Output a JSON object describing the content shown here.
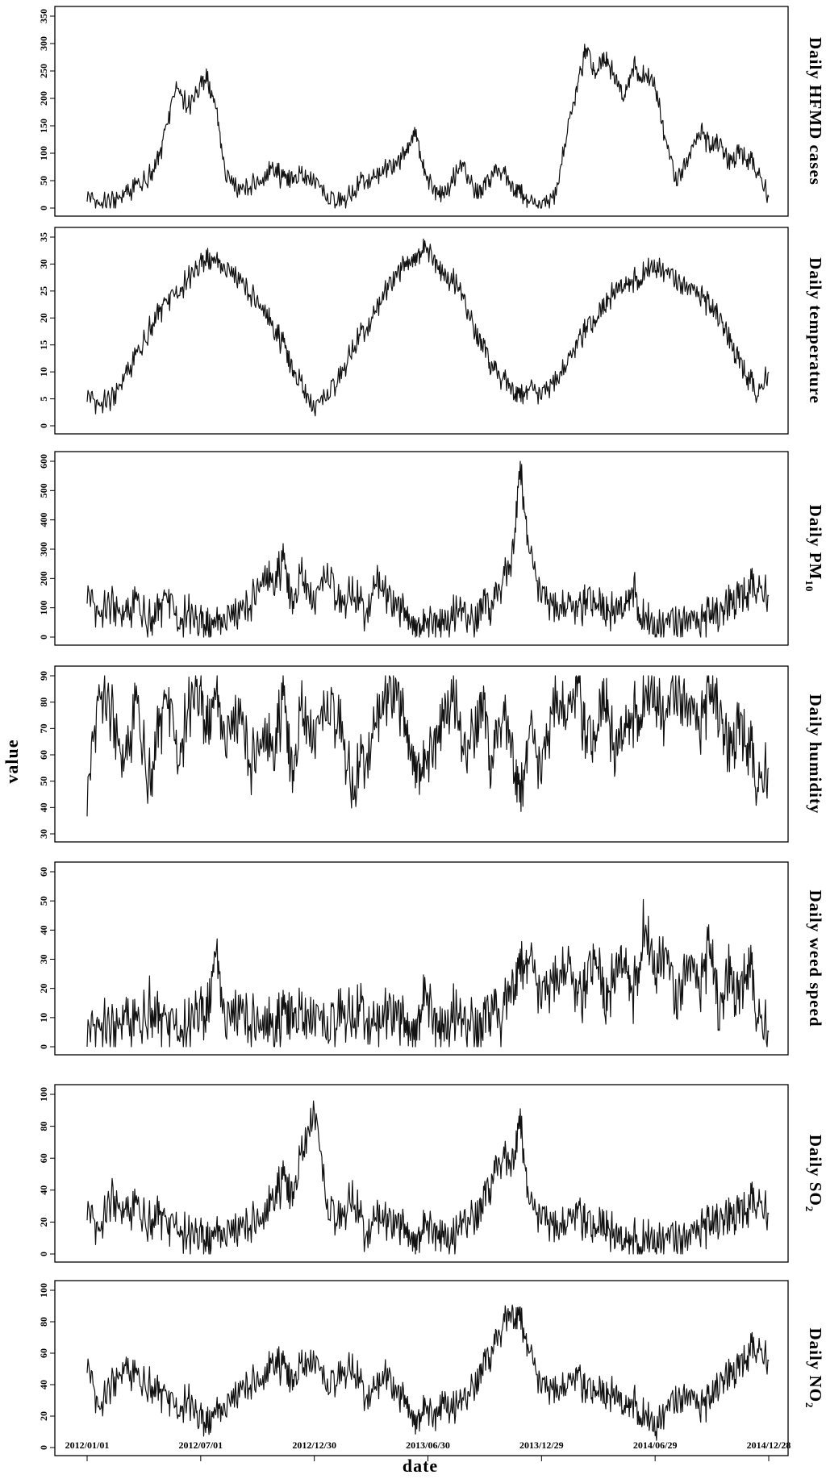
{
  "figure": {
    "y_axis_title": "value",
    "x_axis_title": "date",
    "x_ticks": [
      "2012/01/01",
      "2012/07/01",
      "2012/12/30",
      "2013/06/30",
      "2013/12/29",
      "2014/06/29",
      "2014/12/28"
    ],
    "line_color": "#111111"
  },
  "chart_data": [
    {
      "type": "line",
      "panel_label": "Daily HFMD cases",
      "ylim": [
        0,
        350
      ],
      "yticks": [
        0,
        50,
        100,
        150,
        200,
        250,
        300,
        350
      ],
      "x": [
        "2012/01/01",
        "2012/01/20",
        "2012/02/10",
        "2012/03/01",
        "2012/03/20",
        "2012/04/10",
        "2012/04/25",
        "2012/05/10",
        "2012/05/25",
        "2012/06/10",
        "2012/06/25",
        "2012/07/10",
        "2012/07/25",
        "2012/08/10",
        "2012/09/01",
        "2012/09/20",
        "2012/10/10",
        "2012/10/25",
        "2012/11/10",
        "2012/11/25",
        "2012/12/10",
        "2012/12/30",
        "2013/01/20",
        "2013/02/10",
        "2013/03/01",
        "2013/03/20",
        "2013/04/10",
        "2013/04/25",
        "2013/05/10",
        "2013/05/25",
        "2013/06/10",
        "2013/06/25",
        "2013/07/10",
        "2013/07/25",
        "2013/08/10",
        "2013/08/25",
        "2013/09/10",
        "2013/09/25",
        "2013/10/10",
        "2013/10/25",
        "2013/11/10",
        "2013/11/25",
        "2013/12/10",
        "2013/12/29",
        "2014/01/20",
        "2014/02/10",
        "2014/02/25",
        "2014/03/10",
        "2014/03/25",
        "2014/04/10",
        "2014/04/25",
        "2014/05/10",
        "2014/05/25",
        "2014/06/10",
        "2014/06/29",
        "2014/07/15",
        "2014/08/01",
        "2014/08/20",
        "2014/09/10",
        "2014/09/25",
        "2014/10/10",
        "2014/10/25",
        "2014/11/10",
        "2014/11/25",
        "2014/12/10",
        "2014/12/28"
      ],
      "values": [
        25,
        8,
        12,
        25,
        40,
        60,
        90,
        160,
        230,
        180,
        210,
        240,
        180,
        60,
        30,
        40,
        55,
        75,
        50,
        60,
        55,
        50,
        20,
        10,
        25,
        55,
        60,
        70,
        80,
        100,
        150,
        60,
        35,
        25,
        55,
        80,
        40,
        30,
        60,
        70,
        40,
        25,
        10,
        5,
        20,
        150,
        220,
        290,
        250,
        270,
        240,
        200,
        260,
        240,
        230,
        130,
        50,
        90,
        140,
        110,
        120,
        80,
        100,
        90,
        70,
        20
      ]
    },
    {
      "type": "line",
      "panel_label": "Daily temperature",
      "ylim": [
        0,
        35
      ],
      "yticks": [
        0,
        5,
        10,
        15,
        20,
        25,
        30,
        35
      ],
      "x": [
        "2012/01/01",
        "2012/01/20",
        "2012/02/10",
        "2012/03/01",
        "2012/03/20",
        "2012/04/10",
        "2012/04/25",
        "2012/05/10",
        "2012/05/25",
        "2012/06/10",
        "2012/06/25",
        "2012/07/10",
        "2012/07/25",
        "2012/08/10",
        "2012/09/01",
        "2012/09/20",
        "2012/10/10",
        "2012/10/25",
        "2012/11/10",
        "2012/11/25",
        "2012/12/10",
        "2012/12/30",
        "2013/01/20",
        "2013/02/10",
        "2013/03/01",
        "2013/03/20",
        "2013/04/10",
        "2013/04/25",
        "2013/05/10",
        "2013/05/25",
        "2013/06/10",
        "2013/06/25",
        "2013/07/10",
        "2013/07/25",
        "2013/08/10",
        "2013/08/25",
        "2013/09/10",
        "2013/09/25",
        "2013/10/10",
        "2013/10/25",
        "2013/11/10",
        "2013/11/25",
        "2013/12/10",
        "2013/12/29",
        "2014/01/20",
        "2014/02/10",
        "2014/02/25",
        "2014/03/10",
        "2014/03/25",
        "2014/04/10",
        "2014/04/25",
        "2014/05/10",
        "2014/05/25",
        "2014/06/10",
        "2014/06/29",
        "2014/07/15",
        "2014/08/01",
        "2014/08/20",
        "2014/09/10",
        "2014/09/25",
        "2014/10/10",
        "2014/10/25",
        "2014/11/10",
        "2014/11/25",
        "2014/12/10",
        "2014/12/28"
      ],
      "values": [
        6,
        4,
        5,
        9,
        13,
        18,
        21,
        23,
        25,
        27,
        29,
        31,
        30,
        29,
        27,
        24,
        22,
        18,
        15,
        11,
        7,
        3,
        6,
        9,
        14,
        18,
        22,
        25,
        28,
        30,
        32,
        33,
        31,
        28,
        27,
        24,
        19,
        15,
        11,
        9,
        7,
        5,
        7,
        6,
        8,
        12,
        15,
        18,
        20,
        22,
        25,
        26,
        27,
        28,
        30,
        29,
        27,
        26,
        24,
        22,
        20,
        16,
        12,
        9,
        6,
        10
      ]
    },
    {
      "type": "line",
      "panel_label": "Daily PM10",
      "ylim": [
        0,
        600
      ],
      "yticks": [
        0,
        100,
        200,
        300,
        400,
        500,
        600
      ],
      "x": [
        "2012/01/01",
        "2012/01/20",
        "2012/02/10",
        "2012/03/01",
        "2012/03/20",
        "2012/04/10",
        "2012/04/25",
        "2012/05/10",
        "2012/05/25",
        "2012/06/10",
        "2012/06/25",
        "2012/07/10",
        "2012/07/25",
        "2012/08/10",
        "2012/09/01",
        "2012/09/20",
        "2012/10/10",
        "2012/10/25",
        "2012/11/10",
        "2012/11/25",
        "2012/12/10",
        "2012/12/30",
        "2013/01/20",
        "2013/02/10",
        "2013/03/01",
        "2013/03/20",
        "2013/04/10",
        "2013/04/25",
        "2013/05/10",
        "2013/05/25",
        "2013/06/10",
        "2013/06/25",
        "2013/07/10",
        "2013/07/25",
        "2013/08/10",
        "2013/08/25",
        "2013/09/10",
        "2013/09/25",
        "2013/10/10",
        "2013/10/25",
        "2013/11/10",
        "2013/11/25",
        "2013/12/10",
        "2013/12/29",
        "2014/01/20",
        "2014/02/10",
        "2014/02/25",
        "2014/03/10",
        "2014/03/25",
        "2014/04/10",
        "2014/04/25",
        "2014/05/10",
        "2014/05/25",
        "2014/06/10",
        "2014/06/29",
        "2014/07/15",
        "2014/08/01",
        "2014/08/20",
        "2014/09/10",
        "2014/09/25",
        "2014/10/10",
        "2014/10/25",
        "2014/11/10",
        "2014/11/25",
        "2014/12/10",
        "2014/12/28"
      ],
      "values": [
        160,
        80,
        110,
        70,
        120,
        60,
        90,
        130,
        60,
        80,
        50,
        40,
        30,
        60,
        80,
        110,
        220,
        180,
        250,
        130,
        200,
        110,
        230,
        100,
        150,
        90,
        200,
        130,
        110,
        80,
        60,
        40,
        60,
        50,
        80,
        90,
        60,
        110,
        100,
        180,
        240,
        560,
        280,
        150,
        90,
        110,
        80,
        120,
        140,
        70,
        90,
        100,
        170,
        60,
        40,
        60,
        50,
        70,
        40,
        80,
        70,
        110,
        130,
        160,
        180,
        140
      ]
    },
    {
      "type": "line",
      "panel_label": "Daily humidity",
      "ylim": [
        30,
        90
      ],
      "yticks": [
        30,
        40,
        50,
        60,
        70,
        80,
        90
      ],
      "x": [
        "2012/01/01",
        "2012/01/20",
        "2012/02/10",
        "2012/03/01",
        "2012/03/20",
        "2012/04/10",
        "2012/04/25",
        "2012/05/10",
        "2012/05/25",
        "2012/06/10",
        "2012/06/25",
        "2012/07/10",
        "2012/07/25",
        "2012/08/10",
        "2012/09/01",
        "2012/09/20",
        "2012/10/10",
        "2012/10/25",
        "2012/11/10",
        "2012/11/25",
        "2012/12/10",
        "2012/12/30",
        "2013/01/20",
        "2013/02/10",
        "2013/03/01",
        "2013/03/20",
        "2013/04/10",
        "2013/04/25",
        "2013/05/10",
        "2013/05/25",
        "2013/06/10",
        "2013/06/25",
        "2013/07/10",
        "2013/07/25",
        "2013/08/10",
        "2013/08/25",
        "2013/09/10",
        "2013/09/25",
        "2013/10/10",
        "2013/10/25",
        "2013/11/10",
        "2013/11/25",
        "2013/12/10",
        "2013/12/29",
        "2014/01/20",
        "2014/02/10",
        "2014/02/25",
        "2014/03/10",
        "2014/03/25",
        "2014/04/10",
        "2014/04/25",
        "2014/05/10",
        "2014/05/25",
        "2014/06/10",
        "2014/06/29",
        "2014/07/15",
        "2014/08/01",
        "2014/08/20",
        "2014/09/10",
        "2014/09/25",
        "2014/10/10",
        "2014/10/25",
        "2014/11/10",
        "2014/11/25",
        "2014/12/10",
        "2014/12/28"
      ],
      "values": [
        45,
        85,
        75,
        55,
        80,
        50,
        70,
        80,
        60,
        75,
        85,
        70,
        80,
        65,
        75,
        55,
        70,
        60,
        80,
        55,
        75,
        65,
        80,
        70,
        45,
        60,
        75,
        80,
        85,
        70,
        60,
        55,
        65,
        75,
        85,
        60,
        70,
        80,
        55,
        75,
        65,
        40,
        70,
        55,
        80,
        75,
        85,
        65,
        70,
        80,
        60,
        70,
        75,
        80,
        85,
        75,
        85,
        80,
        70,
        85,
        75,
        60,
        70,
        65,
        50,
        55
      ]
    },
    {
      "type": "line",
      "panel_label": "Daily weed speed",
      "ylim": [
        0,
        60
      ],
      "yticks": [
        0,
        10,
        20,
        30,
        40,
        50,
        60
      ],
      "x": [
        "2012/01/01",
        "2012/01/20",
        "2012/02/10",
        "2012/03/01",
        "2012/03/20",
        "2012/04/10",
        "2012/04/25",
        "2012/05/10",
        "2012/05/25",
        "2012/06/10",
        "2012/06/25",
        "2012/07/10",
        "2012/07/25",
        "2012/08/10",
        "2012/09/01",
        "2012/09/20",
        "2012/10/10",
        "2012/10/25",
        "2012/11/10",
        "2012/11/25",
        "2012/12/10",
        "2012/12/30",
        "2013/01/20",
        "2013/02/10",
        "2013/03/01",
        "2013/03/20",
        "2013/04/10",
        "2013/04/25",
        "2013/05/10",
        "2013/05/25",
        "2013/06/10",
        "2013/06/25",
        "2013/07/10",
        "2013/07/25",
        "2013/08/10",
        "2013/08/25",
        "2013/09/10",
        "2013/09/25",
        "2013/10/10",
        "2013/10/25",
        "2013/11/10",
        "2013/11/25",
        "2013/12/10",
        "2013/12/29",
        "2014/01/20",
        "2014/02/10",
        "2014/02/25",
        "2014/03/10",
        "2014/03/25",
        "2014/04/10",
        "2014/04/25",
        "2014/05/10",
        "2014/05/25",
        "2014/06/10",
        "2014/06/29",
        "2014/07/15",
        "2014/08/01",
        "2014/08/20",
        "2014/09/10",
        "2014/09/25",
        "2014/10/10",
        "2014/10/25",
        "2014/11/10",
        "2014/11/25",
        "2014/12/10",
        "2014/12/28"
      ],
      "values": [
        6,
        8,
        5,
        10,
        7,
        14,
        9,
        6,
        8,
        5,
        12,
        10,
        30,
        8,
        12,
        7,
        10,
        6,
        9,
        14,
        8,
        10,
        7,
        11,
        9,
        13,
        8,
        10,
        12,
        7,
        9,
        18,
        10,
        6,
        12,
        8,
        10,
        6,
        14,
        9,
        20,
        25,
        30,
        18,
        22,
        28,
        15,
        20,
        35,
        12,
        25,
        30,
        18,
        40,
        28,
        35,
        15,
        30,
        20,
        35,
        10,
        25,
        15,
        30,
        12,
        5
      ]
    },
    {
      "type": "line",
      "panel_label": "Daily SO2",
      "ylim": [
        0,
        100
      ],
      "yticks": [
        0,
        20,
        40,
        60,
        80,
        100
      ],
      "x": [
        "2012/01/01",
        "2012/01/20",
        "2012/02/10",
        "2012/03/01",
        "2012/03/20",
        "2012/04/10",
        "2012/04/25",
        "2012/05/10",
        "2012/05/25",
        "2012/06/10",
        "2012/06/25",
        "2012/07/10",
        "2012/07/25",
        "2012/08/10",
        "2012/09/01",
        "2012/09/20",
        "2012/10/10",
        "2012/10/25",
        "2012/11/10",
        "2012/11/25",
        "2012/12/10",
        "2012/12/30",
        "2013/01/20",
        "2013/02/10",
        "2013/03/01",
        "2013/03/20",
        "2013/04/10",
        "2013/04/25",
        "2013/05/10",
        "2013/05/25",
        "2013/06/10",
        "2013/06/25",
        "2013/07/10",
        "2013/07/25",
        "2013/08/10",
        "2013/08/25",
        "2013/09/10",
        "2013/09/25",
        "2013/10/10",
        "2013/10/25",
        "2013/11/10",
        "2013/11/25",
        "2013/12/10",
        "2013/12/29",
        "2014/01/20",
        "2014/02/10",
        "2014/02/25",
        "2014/03/10",
        "2014/03/25",
        "2014/04/10",
        "2014/04/25",
        "2014/05/10",
        "2014/05/25",
        "2014/06/10",
        "2014/06/29",
        "2014/07/15",
        "2014/08/01",
        "2014/08/20",
        "2014/09/10",
        "2014/09/25",
        "2014/10/10",
        "2014/10/25",
        "2014/11/10",
        "2014/11/25",
        "2014/12/10",
        "2014/12/28"
      ],
      "values": [
        30,
        15,
        35,
        25,
        30,
        20,
        25,
        15,
        20,
        10,
        12,
        8,
        10,
        12,
        15,
        18,
        25,
        35,
        45,
        40,
        60,
        90,
        30,
        20,
        35,
        15,
        25,
        18,
        20,
        15,
        12,
        18,
        15,
        12,
        10,
        20,
        25,
        30,
        45,
        60,
        55,
        80,
        30,
        25,
        15,
        20,
        25,
        18,
        20,
        15,
        12,
        8,
        10,
        8,
        10,
        12,
        10,
        12,
        15,
        18,
        20,
        22,
        25,
        30,
        35,
        25
      ]
    },
    {
      "type": "line",
      "panel_label": "Daily NO2",
      "ylim": [
        0,
        100
      ],
      "yticks": [
        0,
        20,
        40,
        60,
        80,
        100
      ],
      "x": [
        "2012/01/01",
        "2012/01/20",
        "2012/02/10",
        "2012/03/01",
        "2012/03/20",
        "2012/04/10",
        "2012/04/25",
        "2012/05/10",
        "2012/05/25",
        "2012/06/10",
        "2012/06/25",
        "2012/07/10",
        "2012/07/25",
        "2012/08/10",
        "2012/09/01",
        "2012/09/20",
        "2012/10/10",
        "2012/10/25",
        "2012/11/10",
        "2012/11/25",
        "2012/12/10",
        "2012/12/30",
        "2013/01/20",
        "2013/02/10",
        "2013/03/01",
        "2013/03/20",
        "2013/04/10",
        "2013/04/25",
        "2013/05/10",
        "2013/05/25",
        "2013/06/10",
        "2013/06/25",
        "2013/07/10",
        "2013/07/25",
        "2013/08/10",
        "2013/08/25",
        "2013/09/10",
        "2013/09/25",
        "2013/10/10",
        "2013/10/25",
        "2013/11/10",
        "2013/11/25",
        "2013/12/10",
        "2013/12/29",
        "2014/01/20",
        "2014/02/10",
        "2014/02/25",
        "2014/03/10",
        "2014/03/25",
        "2014/04/10",
        "2014/04/25",
        "2014/05/10",
        "2014/05/25",
        "2014/06/10",
        "2014/06/29",
        "2014/07/15",
        "2014/08/01",
        "2014/08/20",
        "2014/09/10",
        "2014/09/25",
        "2014/10/10",
        "2014/10/25",
        "2014/11/10",
        "2014/11/25",
        "2014/12/10",
        "2014/12/28"
      ],
      "values": [
        55,
        25,
        40,
        50,
        45,
        40,
        35,
        30,
        25,
        30,
        20,
        15,
        20,
        25,
        35,
        40,
        45,
        55,
        50,
        45,
        50,
        55,
        40,
        45,
        50,
        35,
        40,
        45,
        35,
        30,
        20,
        25,
        20,
        30,
        25,
        30,
        40,
        50,
        60,
        75,
        85,
        80,
        60,
        40,
        35,
        40,
        45,
        35,
        40,
        30,
        35,
        25,
        30,
        20,
        15,
        25,
        30,
        35,
        25,
        30,
        40,
        45,
        50,
        60,
        65,
        55
      ]
    }
  ]
}
